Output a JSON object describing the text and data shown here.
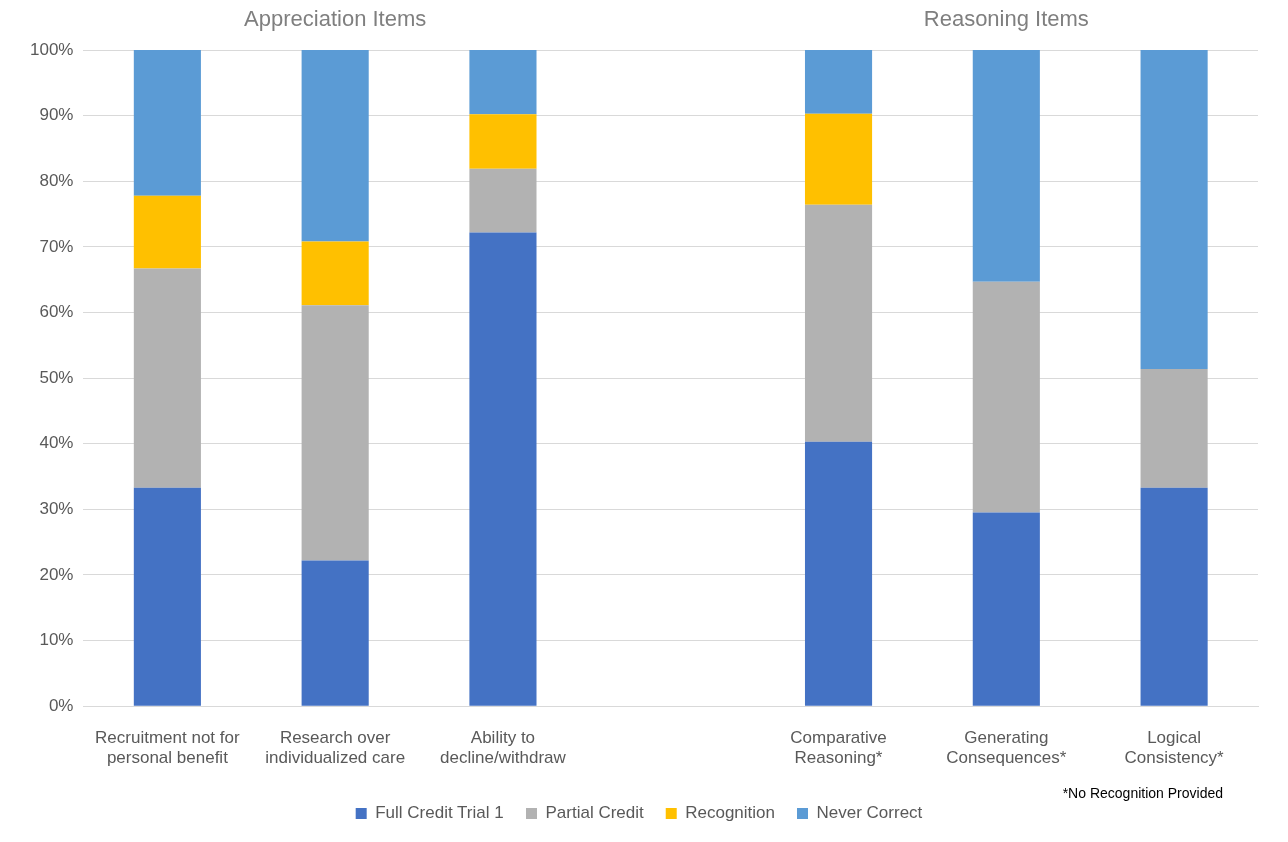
{
  "chart_data": {
    "type": "bar",
    "stacked": true,
    "categories": [
      "Recruitment not for personal benefit",
      "Research over individualized care",
      "Ability to decline/withdraw",
      null,
      "Comparative Reasoning*",
      "Generating Consequences*",
      "Logical Consistency*"
    ],
    "series": [
      {
        "name": "Full Credit Trial 1",
        "color": "#4472c4",
        "values": [
          33.3,
          22.2,
          72.2,
          null,
          40.3,
          29.5,
          33.3
        ]
      },
      {
        "name": "Partial Credit",
        "color": "#b2b2b2",
        "values": [
          33.4,
          38.9,
          9.7,
          null,
          36.1,
          35.2,
          18.1
        ]
      },
      {
        "name": "Recognition",
        "color": "#ffc000",
        "values": [
          11.1,
          9.7,
          8.3,
          null,
          13.9,
          0,
          0
        ]
      },
      {
        "name": "Never Correct",
        "color": "#5b9bd5",
        "values": [
          22.2,
          29.2,
          9.8,
          null,
          9.7,
          35.3,
          48.6
        ]
      }
    ],
    "ylim": [
      0,
      100
    ],
    "yticks": [
      {
        "value": 0,
        "label": "0%"
      },
      {
        "value": 10,
        "label": "10%"
      },
      {
        "value": 20,
        "label": "20%"
      },
      {
        "value": 30,
        "label": "30%"
      },
      {
        "value": 40,
        "label": "40%"
      },
      {
        "value": 50,
        "label": "50%"
      },
      {
        "value": 60,
        "label": "60%"
      },
      {
        "value": 70,
        "label": "70%"
      },
      {
        "value": 80,
        "label": "80%"
      },
      {
        "value": 90,
        "label": "90%"
      },
      {
        "value": 100,
        "label": "100%"
      }
    ],
    "grid": "y",
    "legend": "bottom",
    "annotations": [
      "Appreciation Items",
      "Reasoning Items",
      "*No Recognition Provided"
    ]
  }
}
